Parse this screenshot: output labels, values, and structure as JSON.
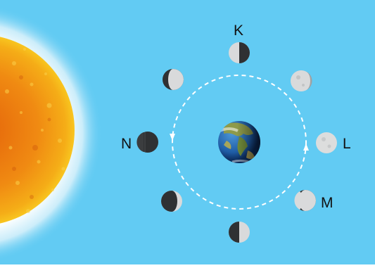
{
  "colors": {
    "sky": "#62cbf3",
    "orbit": "#ffffff",
    "sun_core": "#f08a12",
    "sun_edge": "#f7c11b",
    "moon_lit": "#d9dadb",
    "moon_dark": "#2f3133"
  },
  "icons": {
    "sun": "sun-icon",
    "earth": "earth-icon",
    "moon": "moon-icon"
  },
  "labels": {
    "K": "K",
    "L": "L",
    "M": "M",
    "N": "N"
  }
}
